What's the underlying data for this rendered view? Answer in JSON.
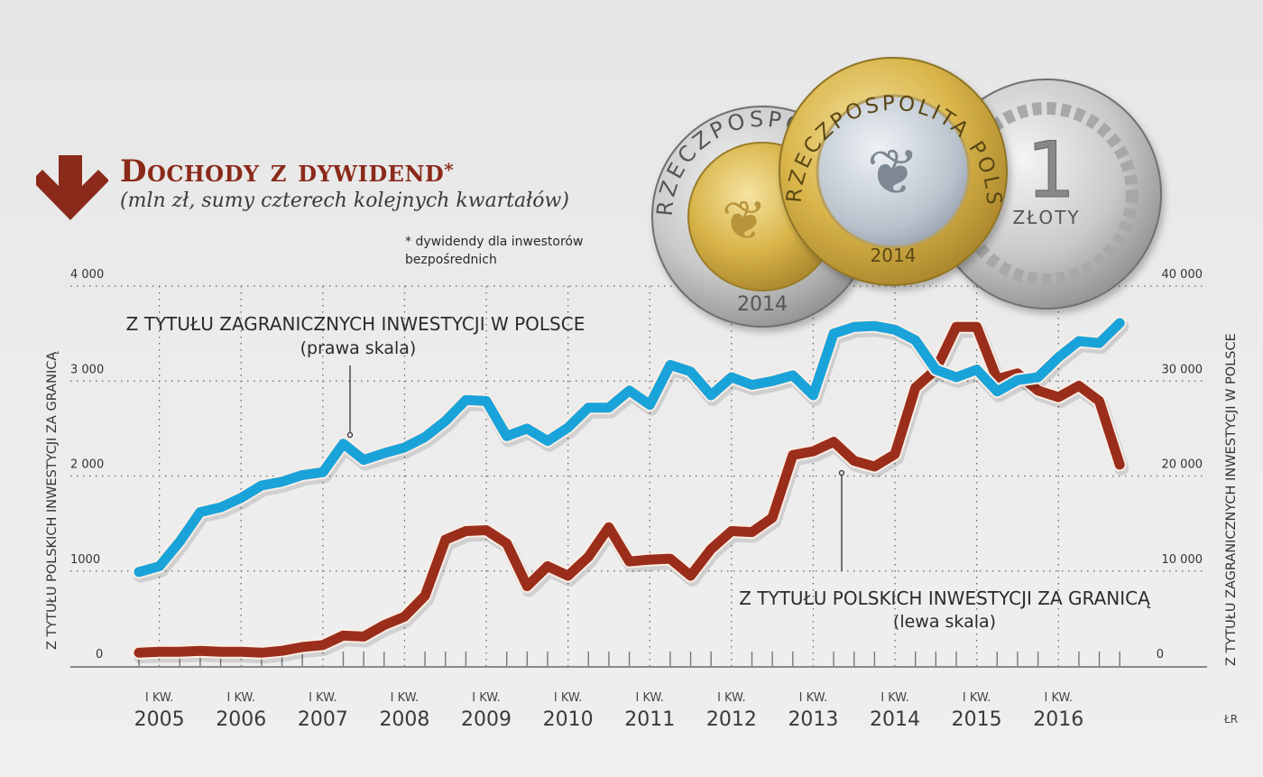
{
  "header": {
    "title": "Dochody z dywidend",
    "title_asterisk": "*",
    "subtitle": "(mln zł, sumy czterech kolejnych kwartałów)",
    "footnote_line1": "* dywidendy dla inwestorów",
    "footnote_line2": "bezpośrednich",
    "icon": "arrow-down-icon"
  },
  "annotations": {
    "foreign_label": "Z TYTUŁU ZAGRANICZNYCH INWESTYCJI W POLSCE",
    "foreign_scale": "(prawa skala)",
    "polish_label": "Z TYTUŁU POLSKICH INWESTYCJI ZA GRANICĄ",
    "polish_scale": "(lewa skala)"
  },
  "axes": {
    "left_title": "Z TYTUŁU POLSKICH INWESTYCJI ZA GRANICĄ",
    "right_title": "Z TYTUŁU ZAGRANICZNYCH INWESTYCJI W POLSCE",
    "left_ticks": [
      "0",
      "1000",
      "2 000",
      "3 000",
      "4 000"
    ],
    "right_ticks": [
      "0",
      "10 000",
      "20 000",
      "30 000",
      "40 000"
    ],
    "x_quarter_label": "I KW.",
    "x_years": [
      "2005",
      "2006",
      "2007",
      "2008",
      "2009",
      "2010",
      "2011",
      "2012",
      "2013",
      "2014",
      "2015",
      "2016"
    ]
  },
  "coins": {
    "coin_5": {
      "legend": "RZECZPOSPOLITA POLSKA",
      "year": "2014"
    },
    "coin_2": {
      "legend": "RZECZPOSPOLITA POLSKA",
      "year": "2014"
    },
    "coin_1": {
      "value": "1",
      "unit": "ZŁOTY"
    }
  },
  "credit": "ŁR",
  "colors": {
    "title": "#8b2a1a",
    "red_series": "#9a2e1b",
    "blue_series": "#1aa3d9",
    "grid": "#555555"
  },
  "chart_data": {
    "type": "line",
    "title": "Dochody z dywidend*",
    "subtitle": "(mln zł, sumy czterech kolejnych kwartałów)",
    "xlabel": "",
    "ylabel_left": "Z TYTUŁU POLSKICH INWESTYCJI ZA GRANICĄ",
    "ylabel_right": "Z TYTUŁU ZAGRANICZNYCH INWESTYCJI W POLSCE",
    "ylim_left": [
      0,
      4000
    ],
    "ylim_right": [
      0,
      40000
    ],
    "grid": true,
    "x": [
      "IV 2004",
      "I 2005",
      "II 2005",
      "III 2005",
      "IV 2005",
      "I 2006",
      "II 2006",
      "III 2006",
      "IV 2006",
      "I 2007",
      "II 2007",
      "III 2007",
      "IV 2007",
      "I 2008",
      "II 2008",
      "III 2008",
      "IV 2008",
      "I 2009",
      "II 2009",
      "III 2009",
      "IV 2009",
      "I 2010",
      "II 2010",
      "III 2010",
      "IV 2010",
      "I 2011",
      "II 2011",
      "III 2011",
      "IV 2011",
      "I 2012",
      "II 2012",
      "III 2012",
      "IV 2012",
      "I 2013",
      "II 2013",
      "III 2013",
      "IV 2013",
      "I 2014",
      "II 2014",
      "III 2014",
      "IV 2014",
      "I 2015",
      "II 2015",
      "III 2015",
      "IV 2015",
      "I 2016",
      "II 2016",
      "III 2016",
      "IV 2016"
    ],
    "series": [
      {
        "name": "Z tytułu zagranicznych inwestycji w Polsce (prawa skala)",
        "axis": "right",
        "color": "#1aa3d9",
        "values": [
          9900,
          10500,
          13100,
          16200,
          16700,
          17700,
          19000,
          19400,
          20100,
          20400,
          23400,
          21700,
          22400,
          23000,
          24100,
          25800,
          28000,
          27900,
          24200,
          25000,
          23700,
          25100,
          27200,
          27200,
          29000,
          27500,
          31700,
          31000,
          28500,
          30400,
          29600,
          30000,
          30600,
          28500,
          35000,
          35700,
          35800,
          35400,
          34300,
          31200,
          30400,
          31200,
          28900,
          30100,
          30400,
          32500,
          34200,
          34000,
          36100
        ]
      },
      {
        "name": "Z tytułu polskich inwestycji za granicą (lewa skala)",
        "axis": "left",
        "color": "#9a2e1b",
        "values": [
          140,
          150,
          150,
          160,
          150,
          150,
          140,
          160,
          200,
          220,
          320,
          310,
          430,
          520,
          740,
          1330,
          1420,
          1430,
          1290,
          840,
          1050,
          950,
          1150,
          1460,
          1100,
          1120,
          1130,
          950,
          1230,
          1420,
          1410,
          1560,
          2220,
          2260,
          2360,
          2160,
          2100,
          2230,
          2930,
          3120,
          3570,
          3570,
          3020,
          3080,
          2900,
          2830,
          2950,
          2790,
          2120
        ]
      }
    ]
  }
}
